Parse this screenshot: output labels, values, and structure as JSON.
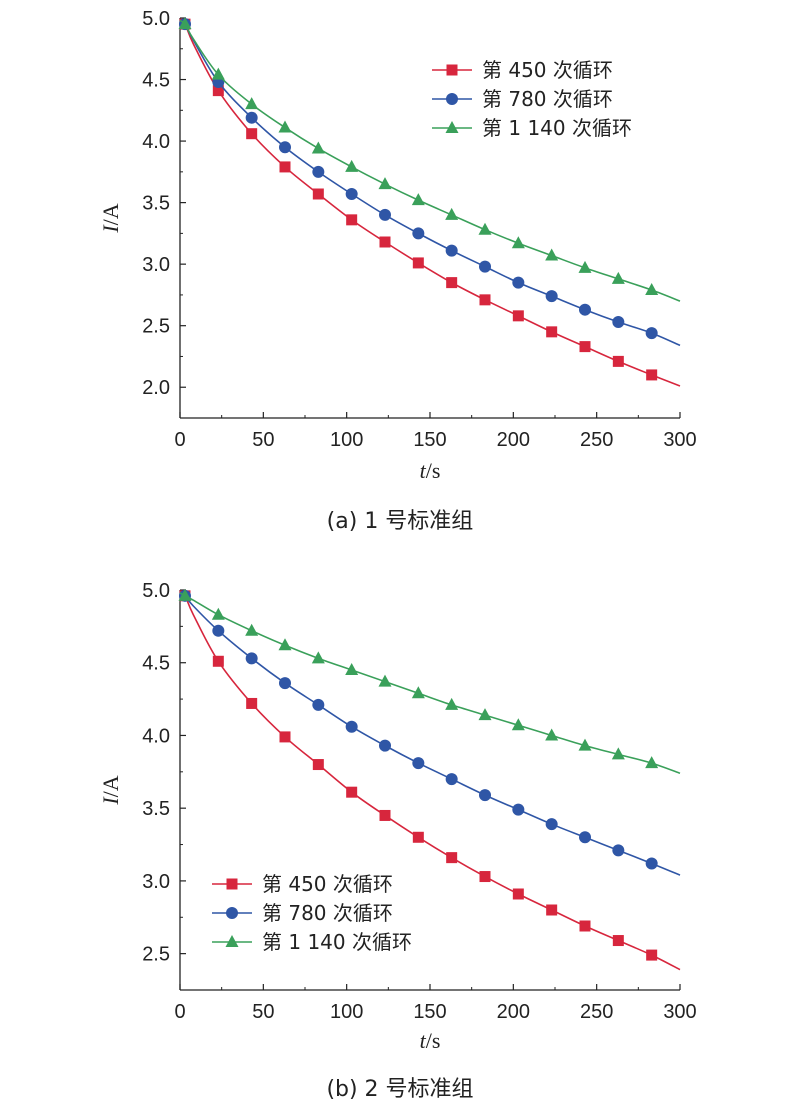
{
  "chart_data": [
    {
      "type": "line",
      "caption": "(a) 1 号标准组",
      "xlabel_italic": "t",
      "xlabel_unit": "/s",
      "ylabel_italic": "I",
      "ylabel_unit": "/A",
      "xlim": [
        0,
        300
      ],
      "ylim": [
        1.75,
        5.0
      ],
      "xticks": [
        0,
        50,
        100,
        150,
        200,
        250,
        300
      ],
      "yticks": [
        2.0,
        2.5,
        3.0,
        3.5,
        4.0,
        4.5,
        5.0
      ],
      "ytick_labels": [
        "2.0",
        "2.5",
        "3.0",
        "3.5",
        "4.0",
        "4.5",
        "5.0"
      ],
      "legend_position": "top-right",
      "x": [
        0,
        3,
        8,
        23,
        43,
        63,
        83,
        103,
        123,
        143,
        163,
        183,
        203,
        223,
        243,
        263,
        283,
        300
      ],
      "markers_x": [
        3,
        23,
        43,
        63,
        83,
        103,
        123,
        143,
        163,
        183,
        203,
        223,
        243,
        263,
        283
      ],
      "series": [
        {
          "name": "第 450 次循环",
          "color": "#d7263d",
          "marker": "square",
          "values": [
            4.98,
            4.95,
            4.79,
            4.41,
            4.06,
            3.79,
            3.57,
            3.36,
            3.18,
            3.01,
            2.85,
            2.71,
            2.58,
            2.45,
            2.33,
            2.21,
            2.1,
            2.01
          ]
        },
        {
          "name": "第 780 次循环",
          "color": "#2f56a6",
          "marker": "circle",
          "values": [
            4.98,
            4.95,
            4.82,
            4.48,
            4.19,
            3.95,
            3.75,
            3.57,
            3.4,
            3.25,
            3.11,
            2.98,
            2.85,
            2.74,
            2.63,
            2.53,
            2.44,
            2.34
          ]
        },
        {
          "name": "第 1 140 次循环",
          "color": "#3aa05a",
          "marker": "triangle",
          "values": [
            4.98,
            4.95,
            4.83,
            4.54,
            4.3,
            4.11,
            3.94,
            3.79,
            3.65,
            3.52,
            3.4,
            3.28,
            3.17,
            3.07,
            2.97,
            2.88,
            2.79,
            2.7
          ]
        }
      ]
    },
    {
      "type": "line",
      "caption": "(b) 2 号标准组",
      "xlabel_italic": "t",
      "xlabel_unit": "/s",
      "ylabel_italic": "I",
      "ylabel_unit": "/A",
      "xlim": [
        0,
        300
      ],
      "ylim": [
        2.25,
        5.0
      ],
      "xticks": [
        0,
        50,
        100,
        150,
        200,
        250,
        300
      ],
      "yticks": [
        2.5,
        3.0,
        3.5,
        4.0,
        4.5,
        5.0
      ],
      "ytick_labels": [
        "2.5",
        "3.0",
        "3.5",
        "4.0",
        "4.5",
        "5.0"
      ],
      "legend_position": "bottom-left",
      "x": [
        0,
        3,
        8,
        23,
        43,
        63,
        83,
        103,
        123,
        143,
        163,
        183,
        203,
        223,
        243,
        263,
        283,
        300
      ],
      "markers_x": [
        3,
        23,
        43,
        63,
        83,
        103,
        123,
        143,
        163,
        183,
        203,
        223,
        243,
        263,
        283
      ],
      "series": [
        {
          "name": "第 450 次循环",
          "color": "#d7263d",
          "marker": "square",
          "values": [
            4.98,
            4.96,
            4.83,
            4.51,
            4.22,
            3.99,
            3.8,
            3.61,
            3.45,
            3.3,
            3.16,
            3.03,
            2.91,
            2.8,
            2.69,
            2.59,
            2.49,
            2.39
          ]
        },
        {
          "name": "第 780 次循环",
          "color": "#2f56a6",
          "marker": "circle",
          "values": [
            4.98,
            4.96,
            4.89,
            4.72,
            4.53,
            4.36,
            4.21,
            4.06,
            3.93,
            3.81,
            3.7,
            3.59,
            3.49,
            3.39,
            3.3,
            3.21,
            3.12,
            3.04
          ]
        },
        {
          "name": "第 1 140 次循环",
          "color": "#3aa05a",
          "marker": "triangle",
          "values": [
            4.98,
            4.96,
            4.93,
            4.83,
            4.72,
            4.62,
            4.53,
            4.45,
            4.37,
            4.29,
            4.21,
            4.14,
            4.07,
            4.0,
            3.93,
            3.87,
            3.81,
            3.74
          ]
        }
      ]
    }
  ]
}
